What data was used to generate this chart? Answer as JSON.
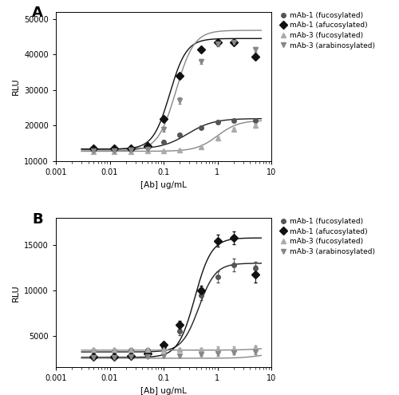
{
  "panel_A": {
    "title": "A",
    "ylim": [
      10000,
      52000
    ],
    "yticks": [
      10000,
      20000,
      30000,
      40000,
      50000
    ],
    "ylabel": "RLU",
    "xlabel": "[Ab] ug/mL",
    "series": [
      {
        "label": "mAb-1 (fucosylated)",
        "color": "#555555",
        "marker": "o",
        "marker_size": 4,
        "line_color": "#222222",
        "x_data": [
          0.005,
          0.012,
          0.025,
          0.05,
          0.1,
          0.2,
          0.5,
          1.0,
          2.0,
          5.0
        ],
        "y_data": [
          13500,
          13600,
          13700,
          14000,
          15500,
          17500,
          19500,
          21000,
          21500,
          21500
        ],
        "y_err": [
          250,
          250,
          250,
          250,
          350,
          400,
          400,
          400,
          500,
          500
        ],
        "sigmoid_params": {
          "bottom": 13400,
          "top": 22000,
          "ec50": 0.28,
          "hillslope": 1.8
        }
      },
      {
        "label": "mAb-1 (afucosylated)",
        "color": "#111111",
        "marker": "D",
        "marker_size": 5,
        "line_color": "#111111",
        "x_data": [
          0.005,
          0.012,
          0.025,
          0.05,
          0.1,
          0.2,
          0.5,
          1.0,
          2.0,
          5.0
        ],
        "y_data": [
          13500,
          13500,
          13700,
          14200,
          22000,
          34000,
          41500,
          43500,
          43500,
          39500
        ],
        "y_err": [
          250,
          250,
          250,
          350,
          600,
          700,
          600,
          500,
          500,
          600
        ],
        "sigmoid_params": {
          "bottom": 13400,
          "top": 44500,
          "ec50": 0.13,
          "hillslope": 2.8
        }
      },
      {
        "label": "mAb-3 (fucosylated)",
        "color": "#aaaaaa",
        "marker": "^",
        "marker_size": 4,
        "line_color": "#888888",
        "x_data": [
          0.005,
          0.012,
          0.025,
          0.05,
          0.1,
          0.2,
          0.5,
          1.0,
          2.0,
          5.0
        ],
        "y_data": [
          12800,
          12800,
          12800,
          12900,
          13000,
          13200,
          14000,
          16500,
          19000,
          20000
        ],
        "y_err": [
          200,
          200,
          200,
          200,
          200,
          250,
          350,
          450,
          500,
          500
        ],
        "sigmoid_params": {
          "bottom": 12800,
          "top": 21500,
          "ec50": 1.0,
          "hillslope": 2.2
        }
      },
      {
        "label": "mAb-3 (arabinosylated)",
        "color": "#888888",
        "marker": "v",
        "marker_size": 5,
        "line_color": "#888888",
        "x_data": [
          0.005,
          0.012,
          0.025,
          0.05,
          0.1,
          0.2,
          0.5,
          1.0,
          2.0,
          5.0
        ],
        "y_data": [
          13000,
          13000,
          13100,
          13300,
          19000,
          27000,
          38000,
          43000,
          43500,
          41500
        ],
        "y_err": [
          250,
          250,
          300,
          400,
          700,
          900,
          700,
          600,
          600,
          700
        ],
        "sigmoid_params": {
          "bottom": 12900,
          "top": 46800,
          "ec50": 0.17,
          "hillslope": 2.6
        }
      }
    ]
  },
  "panel_B": {
    "title": "B",
    "ylim": [
      1500,
      18000
    ],
    "yticks": [
      5000,
      10000,
      15000
    ],
    "ylabel": "RLU",
    "xlabel": "[Ab] ug/mL",
    "series": [
      {
        "label": "mAb-1 (fucosylated)",
        "color": "#555555",
        "marker": "o",
        "marker_size": 4,
        "line_color": "#222222",
        "x_data": [
          0.005,
          0.012,
          0.025,
          0.05,
          0.1,
          0.2,
          0.5,
          1.0,
          2.0,
          5.0
        ],
        "y_data": [
          3300,
          3300,
          3400,
          3400,
          3700,
          5500,
          9500,
          11500,
          12800,
          12500
        ],
        "y_err": [
          200,
          200,
          200,
          200,
          250,
          400,
          550,
          600,
          700,
          700
        ],
        "sigmoid_params": {
          "bottom": 3200,
          "top": 13000,
          "ec50": 0.45,
          "hillslope": 2.8
        }
      },
      {
        "label": "mAb-1 (afucosylated)",
        "color": "#111111",
        "marker": "D",
        "marker_size": 5,
        "line_color": "#111111",
        "x_data": [
          0.005,
          0.012,
          0.025,
          0.05,
          0.1,
          0.2,
          0.5,
          1.0,
          2.0,
          5.0
        ],
        "y_data": [
          2700,
          2700,
          2800,
          3000,
          4000,
          6200,
          10000,
          15500,
          15800,
          11800
        ],
        "y_err": [
          200,
          200,
          200,
          200,
          280,
          450,
          550,
          700,
          700,
          900
        ],
        "sigmoid_params": {
          "bottom": 2600,
          "top": 15800,
          "ec50": 0.38,
          "hillslope": 2.8
        }
      },
      {
        "label": "mAb-3 (fucosylated)",
        "color": "#aaaaaa",
        "marker": "^",
        "marker_size": 4,
        "line_color": "#888888",
        "x_data": [
          0.005,
          0.012,
          0.025,
          0.05,
          0.1,
          0.2,
          0.5,
          1.0,
          2.0,
          5.0
        ],
        "y_data": [
          3500,
          3500,
          3500,
          3500,
          3500,
          3500,
          3500,
          3600,
          3600,
          3700
        ],
        "y_err": [
          150,
          150,
          150,
          150,
          150,
          150,
          150,
          200,
          200,
          250
        ],
        "sigmoid_params": {
          "bottom": 3400,
          "top": 3800,
          "ec50": 8.0,
          "hillslope": 2.0
        }
      },
      {
        "label": "mAb-3 (arabinosylated)",
        "color": "#888888",
        "marker": "v",
        "marker_size": 5,
        "line_color": "#888888",
        "x_data": [
          0.005,
          0.012,
          0.025,
          0.05,
          0.1,
          0.2,
          0.5,
          1.0,
          2.0,
          5.0
        ],
        "y_data": [
          2600,
          2600,
          2700,
          2700,
          2800,
          2800,
          2900,
          3000,
          3100,
          3200
        ],
        "y_err": [
          150,
          150,
          150,
          150,
          150,
          150,
          150,
          200,
          200,
          250
        ],
        "sigmoid_params": {
          "bottom": 2500,
          "top": 3300,
          "ec50": 8.0,
          "hillslope": 2.0
        }
      }
    ]
  },
  "xlim": [
    0.003,
    7
  ],
  "figure_bg": "#ffffff",
  "panel_bg": "#ffffff"
}
